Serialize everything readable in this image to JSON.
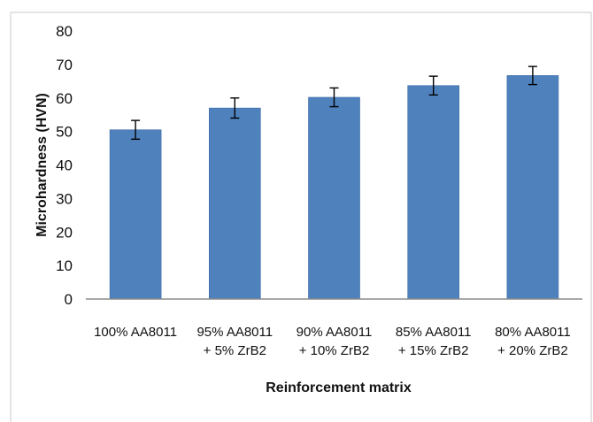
{
  "chart_data": {
    "type": "bar",
    "categories": [
      [
        "100% AA8011"
      ],
      [
        "95% AA8011",
        "+ 5% ZrB2"
      ],
      [
        "90% AA8011",
        "+ 10% ZrB2"
      ],
      [
        "85% AA8011",
        "+ 15% ZrB2"
      ],
      [
        "80% AA8011",
        "+ 20% ZrB2"
      ]
    ],
    "values": [
      50.5,
      57,
      60.2,
      63.7,
      66.7
    ],
    "error": [
      2.8,
      3.0,
      2.8,
      2.8,
      2.7
    ],
    "xlabel": "Reinforcement matrix",
    "ylabel": "Microhardness (HVN)",
    "ylim": [
      0,
      80
    ],
    "yticks": [
      0,
      10,
      20,
      30,
      40,
      50,
      60,
      70,
      80
    ],
    "grid": false,
    "legend": "none",
    "colors": {
      "bar": "#4f81bd",
      "bar_edge": "#3a6aa6",
      "axis": "#8c8c8c",
      "error": "#000000"
    }
  }
}
